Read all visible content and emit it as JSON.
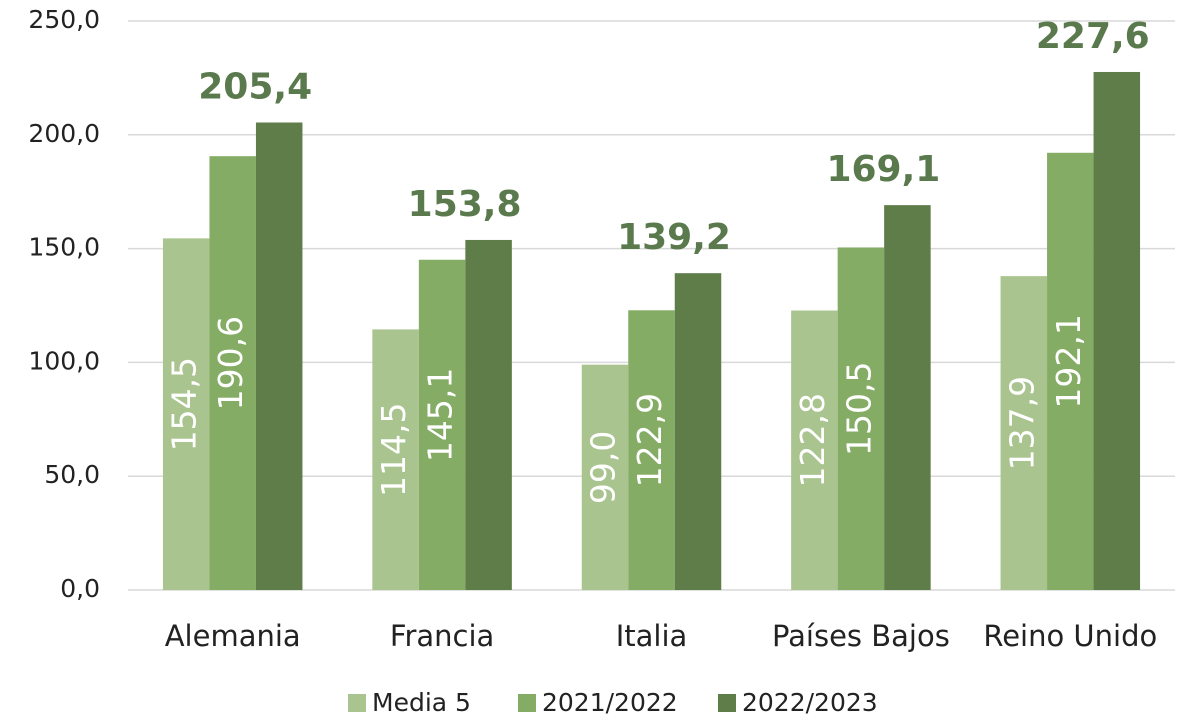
{
  "chart_data": {
    "type": "bar",
    "categories": [
      "Alemania",
      "Francia",
      "Italia",
      "Países Bajos",
      "Reino Unido"
    ],
    "series": [
      {
        "name": "Media 5",
        "color": "#a9c48f",
        "values": [
          154.5,
          114.5,
          99.0,
          122.8,
          137.9
        ],
        "value_labels": [
          "154,5",
          "114,5",
          "99,0",
          "122,8",
          "137,9"
        ]
      },
      {
        "name": "2021/2022",
        "color": "#84ac64",
        "values": [
          190.6,
          145.1,
          122.9,
          150.5,
          192.1
        ],
        "value_labels": [
          "190,6",
          "145,1",
          "122,9",
          "150,5",
          "192,1"
        ]
      },
      {
        "name": "2022/2023",
        "color": "#5e7d48",
        "values": [
          205.4,
          153.8,
          139.2,
          169.1,
          227.6
        ],
        "value_labels": [
          "205,4",
          "153,8",
          "139,2",
          "169,1",
          "227,6"
        ]
      }
    ],
    "ylim": [
      0,
      250
    ],
    "yticks": [
      {
        "value": 0,
        "label": "0,0"
      },
      {
        "value": 50,
        "label": "50,0"
      },
      {
        "value": 100,
        "label": "100,0"
      },
      {
        "value": 150,
        "label": "150,0"
      },
      {
        "value": 200,
        "label": "200,0"
      },
      {
        "value": 250,
        "label": "250,0"
      }
    ],
    "grid": true,
    "legend": "bottom"
  }
}
